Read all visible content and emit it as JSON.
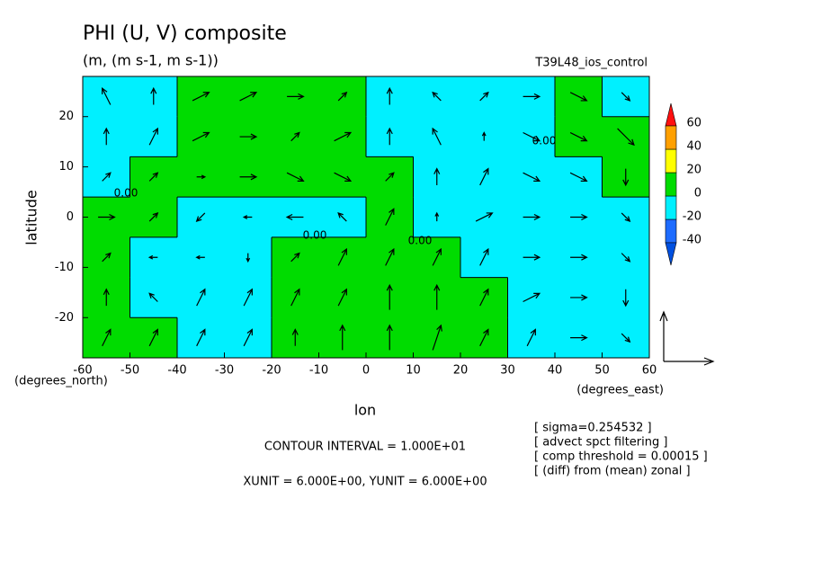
{
  "chart_data": {
    "type": "contour_vector",
    "title": "PHI (U, V) composite",
    "subtitle": "(m, (m s-1, m s-1))",
    "experiment": "T39L48_ios_control",
    "ylabel": "latitude",
    "xlabel": "lon",
    "y_unit_label": "(degrees_north)",
    "x_unit_label": "(degrees_east)",
    "contour_interval": "CONTOUR INTERVAL = 1.000E+01",
    "vector_units": "XUNIT = 6.000E+00, YUNIT = 6.000E+00",
    "notes": [
      "[ sigma=0.254532 ]",
      "[ advect spct filtering ]",
      "[ comp threshold = 0.00015 ]",
      "[ (diff) from (mean) zonal ]"
    ],
    "contour_labels": [
      "0.00",
      "0.00",
      "0.00",
      "0.00"
    ],
    "xlim": [
      -60,
      60
    ],
    "ylim": [
      -28,
      28
    ],
    "xticks": [
      -60,
      -50,
      -40,
      -30,
      -20,
      -10,
      0,
      10,
      20,
      30,
      40,
      50,
      60
    ],
    "yticks": [
      -20,
      -10,
      0,
      10,
      20
    ],
    "lon": [
      -55,
      -45,
      -35,
      -25,
      -15,
      -5,
      5,
      15,
      25,
      35,
      45,
      55
    ],
    "lat": [
      24,
      16,
      8,
      0,
      -8,
      -16,
      -24
    ],
    "field": [
      [
        -5,
        -5,
        5,
        5,
        5,
        5,
        -5,
        -5,
        -5,
        -5,
        5,
        -5
      ],
      [
        -5,
        -5,
        5,
        5,
        5,
        5,
        -5,
        -5,
        -5,
        -5,
        5,
        5
      ],
      [
        -5,
        5,
        5,
        5,
        5,
        5,
        5,
        -5,
        -5,
        -5,
        -5,
        5
      ],
      [
        5,
        5,
        -5,
        -5,
        -5,
        -5,
        5,
        -5,
        -5,
        -5,
        -5,
        -5
      ],
      [
        5,
        -5,
        -5,
        -5,
        5,
        5,
        5,
        5,
        -5,
        -5,
        -5,
        -5
      ],
      [
        5,
        -5,
        -5,
        -5,
        5,
        5,
        5,
        5,
        5,
        -5,
        -5,
        -5
      ],
      [
        5,
        5,
        -5,
        -5,
        5,
        5,
        5,
        5,
        5,
        -5,
        -5,
        -5
      ]
    ],
    "u": [
      [
        -1,
        0,
        2,
        2,
        2,
        1,
        0,
        -1,
        1,
        2,
        2,
        1
      ],
      [
        0,
        1,
        2,
        2,
        1,
        2,
        0,
        -1,
        0,
        2,
        2,
        2
      ],
      [
        1,
        1,
        1,
        2,
        2,
        2,
        1,
        0,
        1,
        2,
        2,
        0
      ],
      [
        2,
        1,
        -1,
        -1,
        -2,
        -1,
        1,
        0,
        2,
        2,
        2,
        1
      ],
      [
        1,
        -1,
        -1,
        0,
        1,
        1,
        1,
        1,
        1,
        2,
        2,
        1
      ],
      [
        0,
        -1,
        1,
        1,
        1,
        1,
        0,
        0,
        1,
        2,
        2,
        0
      ],
      [
        1,
        1,
        1,
        1,
        0,
        0,
        0,
        1,
        1,
        1,
        2,
        1
      ]
    ],
    "v": [
      [
        2,
        2,
        1,
        1,
        0,
        1,
        2,
        1,
        1,
        0,
        -1,
        -1
      ],
      [
        2,
        2,
        1,
        0,
        1,
        1,
        2,
        2,
        1,
        -1,
        -1,
        -2
      ],
      [
        1,
        1,
        0,
        0,
        -1,
        -1,
        1,
        2,
        2,
        -1,
        -1,
        -2
      ],
      [
        0,
        1,
        -1,
        0,
        0,
        1,
        2,
        1,
        1,
        0,
        0,
        -1
      ],
      [
        1,
        0,
        0,
        -1,
        1,
        2,
        2,
        2,
        2,
        0,
        0,
        -1
      ],
      [
        2,
        1,
        2,
        2,
        2,
        2,
        3,
        3,
        2,
        1,
        0,
        -2
      ],
      [
        2,
        2,
        2,
        2,
        2,
        3,
        3,
        3,
        2,
        2,
        0,
        -1
      ]
    ],
    "reference_vector": 6,
    "levels": [
      -40,
      -20,
      0,
      20,
      40,
      60
    ],
    "level_colors": [
      "#1e6cff",
      "#00f0ff",
      "#00dc00",
      "#ffff00",
      "#ffa000"
    ],
    "under_color": "#0050e0",
    "over_color": "#ff1010"
  }
}
